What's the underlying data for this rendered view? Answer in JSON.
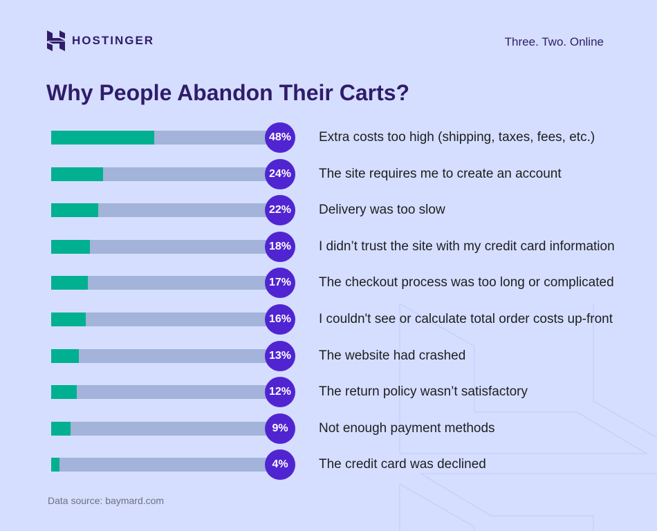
{
  "header": {
    "brand": "HOSTINGER",
    "tagline": "Three. Two. Online"
  },
  "chart_data": {
    "type": "bar",
    "orientation": "horizontal",
    "title": "Why People Abandon Their Carts?",
    "categories": [
      "Extra costs too high (shipping, taxes, fees, etc.)",
      "The site requires me to create an account",
      "Delivery was too slow",
      "I didn’t trust the site with my credit card information",
      "The checkout process was too long or complicated",
      "I couldn't see or calculate total order costs up-front",
      "The website had crashed",
      "The return policy wasn’t satisfactory",
      "Not enough payment methods",
      "The credit card was declined"
    ],
    "values": [
      48,
      24,
      22,
      18,
      17,
      16,
      13,
      12,
      9,
      4
    ],
    "value_labels": [
      "48%",
      "24%",
      "22%",
      "18%",
      "17%",
      "16%",
      "13%",
      "12%",
      "9%",
      "4%"
    ],
    "xlim": [
      0,
      100
    ],
    "unit": "%",
    "colors": {
      "fill": "#00b090",
      "track": "#a3b3d9",
      "badge": "#5025d1",
      "background": "#d5defe"
    }
  },
  "footer": {
    "source": "Data source: baymard.com"
  }
}
